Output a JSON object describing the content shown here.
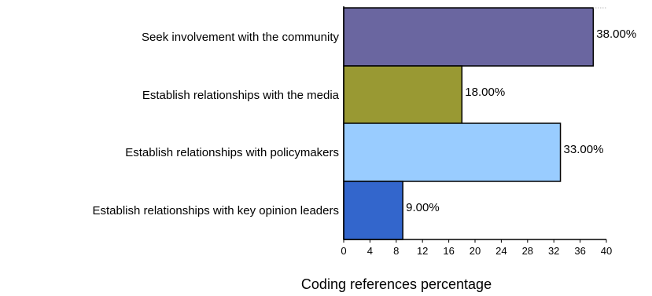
{
  "chart_data": {
    "type": "bar",
    "orientation": "horizontal",
    "categories": [
      "Seek involvement with the community",
      "Establish relationships with the media",
      "Establish relationships with policymakers",
      "Establish relationships with key opinion leaders"
    ],
    "values": [
      38,
      18,
      33,
      9
    ],
    "value_labels": [
      "38.00%",
      "18.00%",
      "33.00%",
      "9.00%"
    ],
    "colors": [
      "#6a66a0",
      "#999933",
      "#99ccff",
      "#3366cc"
    ],
    "xlabel": "Coding references percentage",
    "ylabel": "",
    "xlim": [
      0,
      40
    ],
    "xticks": [
      "0",
      "4",
      "8",
      "12",
      "16",
      "20",
      "24",
      "28",
      "32",
      "36",
      "40"
    ],
    "grid": false
  }
}
